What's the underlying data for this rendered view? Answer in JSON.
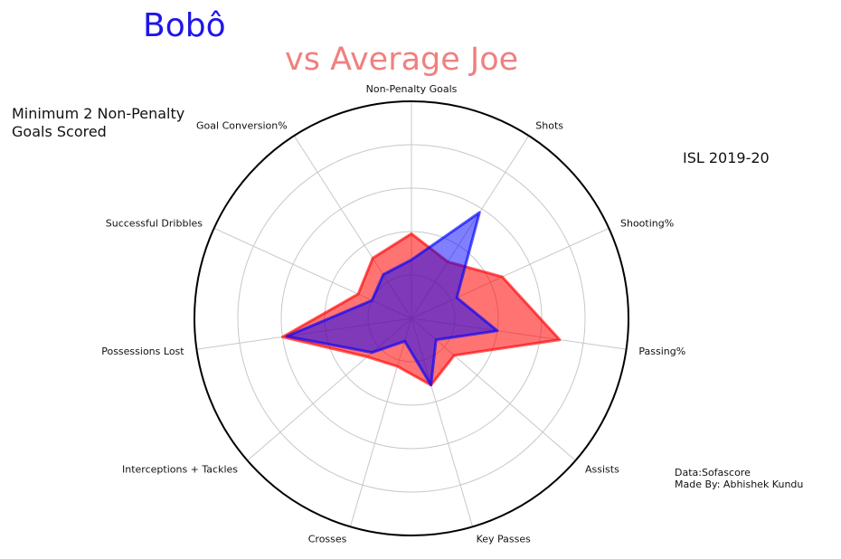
{
  "titles": {
    "player": "Bobô",
    "versus": "vs Average Joe",
    "filter_note": "Minimum 2 Non-Penalty\nGoals Scored",
    "season": "ISL 2019-20",
    "credits": "Data:Sofascore\nMade By: Abhishek Kundu"
  },
  "chart_data": {
    "type": "radar",
    "axes": [
      "Non-Penalty Goals",
      "Shots",
      "Shooting%",
      "Passing%",
      "Assists",
      "Key Passes",
      "Crosses",
      "Interceptions + Tackles",
      "Possessions Lost",
      "Successful Dribbles",
      "Goal Conversion%"
    ],
    "rlim": [
      0,
      100
    ],
    "rings": [
      20,
      40,
      60,
      80
    ],
    "grid": true,
    "series": [
      {
        "name": "Average Joe",
        "color": "#ff0000",
        "fill_opacity": 0.55,
        "values": [
          39,
          31,
          46,
          69,
          26,
          32,
          23,
          27,
          60,
          27,
          33
        ]
      },
      {
        "name": "Bobô",
        "color": "#0000ff",
        "fill_opacity": 0.5,
        "values": [
          27,
          58,
          23,
          40,
          15,
          32,
          11,
          24,
          58,
          20,
          24
        ]
      }
    ]
  }
}
